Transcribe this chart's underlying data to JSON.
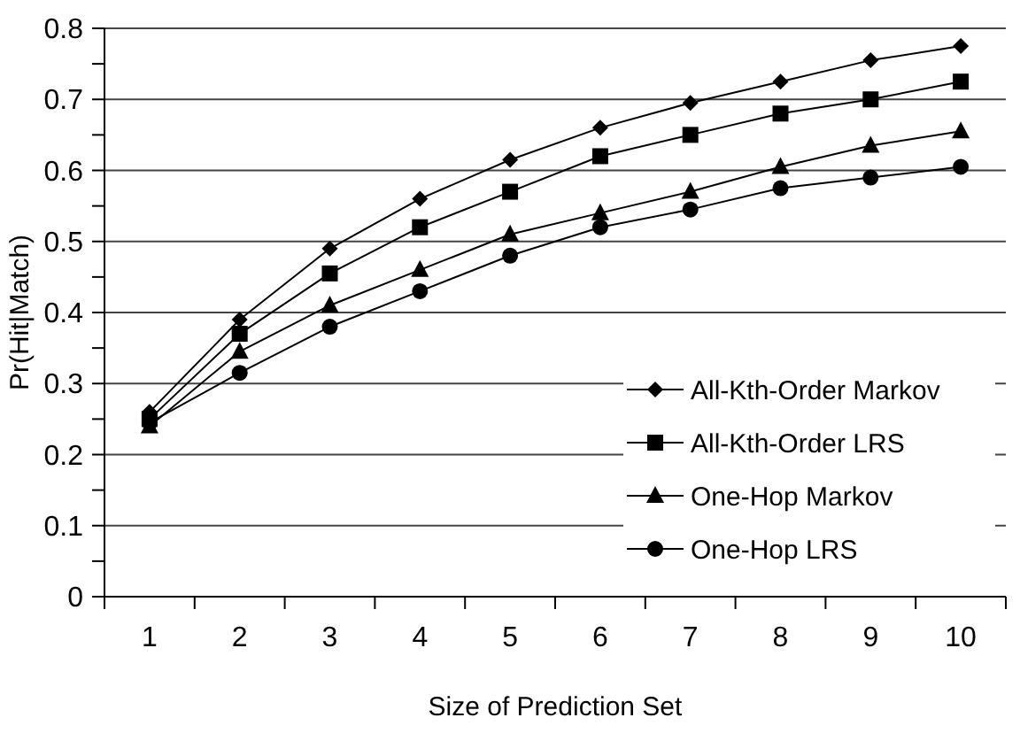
{
  "chart_data": {
    "type": "line",
    "xlabel": "Size of Prediction Set",
    "ylabel": "Pr(Hit|Match)",
    "categories": [
      "1",
      "2",
      "3",
      "4",
      "5",
      "6",
      "7",
      "8",
      "9",
      "10"
    ],
    "ylim": [
      0,
      0.8
    ],
    "yticks": [
      0,
      {
        "value": 0.05,
        "label": null
      },
      0.1,
      {
        "value": 0.15,
        "label": null
      },
      0.2,
      {
        "value": 0.25,
        "label": null
      },
      0.3,
      {
        "value": 0.35,
        "label": null
      },
      0.4,
      {
        "value": 0.45,
        "label": null
      },
      0.5,
      {
        "value": 0.55,
        "label": null
      },
      0.6,
      {
        "value": 0.65,
        "label": null
      },
      0.7,
      {
        "value": 0.75,
        "label": null
      },
      0.8
    ],
    "grid": "y",
    "legend": "bottom right",
    "line_style": "solid",
    "series": [
      {
        "name": "All-Kth-Order Markov",
        "color": "#000000",
        "marker": "diamond",
        "values": [
          0.26,
          0.39,
          0.49,
          0.56,
          0.615,
          0.66,
          0.695,
          0.725,
          0.755,
          0.775
        ]
      },
      {
        "name": "All-Kth-Order LRS",
        "color": "#000000",
        "marker": "square",
        "values": [
          0.25,
          0.37,
          0.455,
          0.52,
          0.57,
          0.62,
          0.65,
          0.68,
          0.7,
          0.725
        ]
      },
      {
        "name": "One-Hop Markov",
        "color": "#000000",
        "marker": "triangle",
        "values": [
          0.24,
          0.345,
          0.41,
          0.46,
          0.51,
          0.54,
          0.57,
          0.605,
          0.635,
          0.655
        ]
      },
      {
        "name": "One-Hop LRS",
        "color": "#000000",
        "marker": "circle",
        "values": [
          0.245,
          0.315,
          0.38,
          0.43,
          0.48,
          0.52,
          0.545,
          0.575,
          0.59,
          0.605
        ]
      }
    ]
  }
}
